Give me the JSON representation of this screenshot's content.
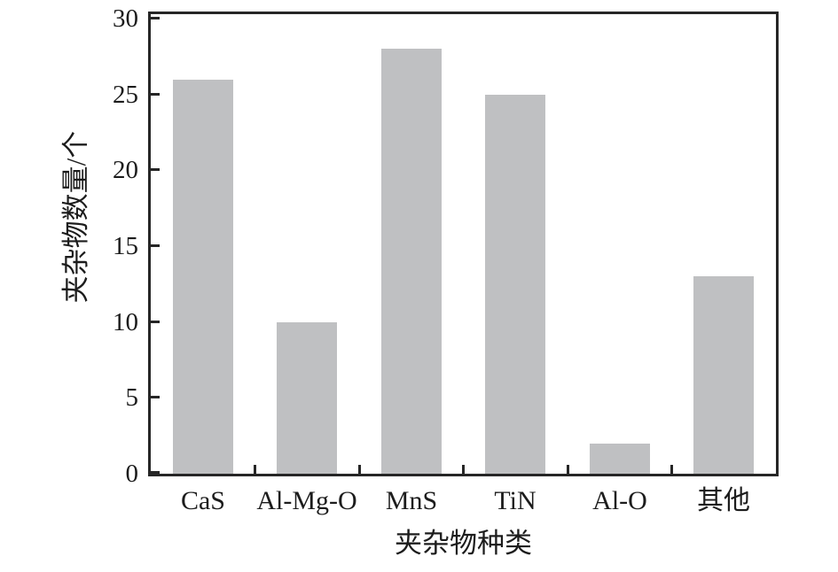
{
  "chart_data": {
    "type": "bar",
    "categories": [
      "CaS",
      "Al-Mg-O",
      "MnS",
      "TiN",
      "Al-O",
      "其他"
    ],
    "values": [
      26,
      10,
      28,
      25,
      2,
      13
    ],
    "title": "",
    "xlabel": "夹杂物种类",
    "ylabel": "夹杂物数量/个",
    "ylim": [
      0,
      30
    ],
    "yticks": [
      0,
      5,
      10,
      15,
      20,
      25,
      30
    ],
    "legend": "none",
    "grid": false,
    "bar_color": "#bfc0c2",
    "axis_color": "#262626",
    "text_color": "#1c1c1c"
  }
}
